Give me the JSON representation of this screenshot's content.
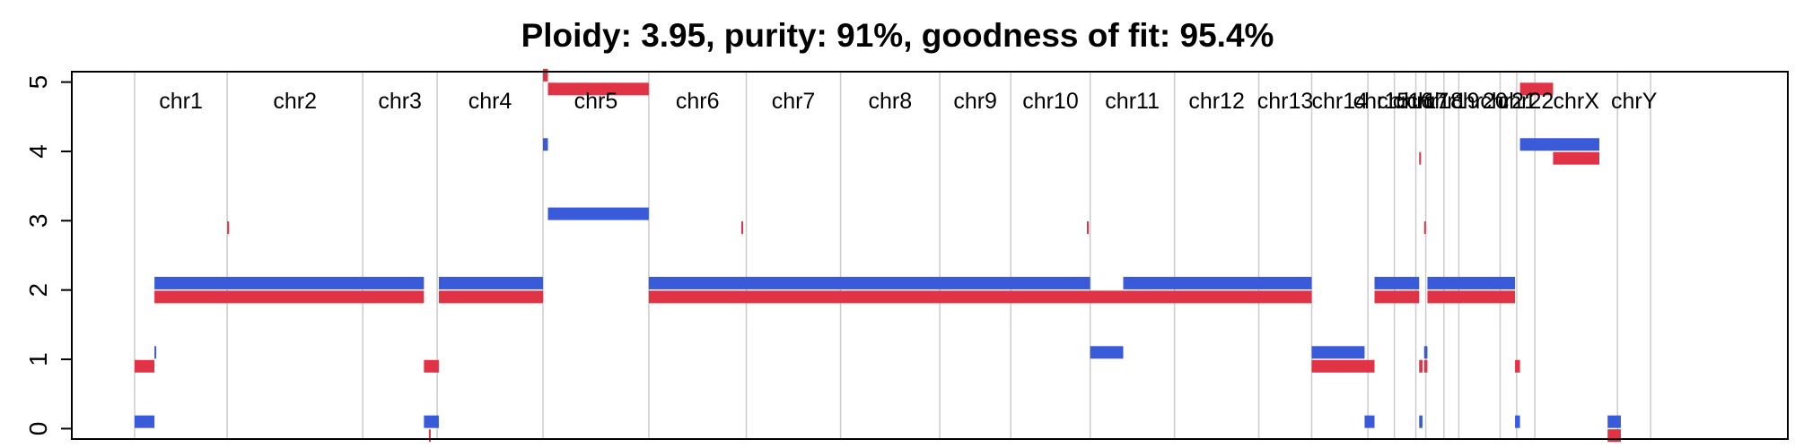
{
  "chart_data": {
    "type": "segment",
    "title": "Ploidy: 3.95, purity: 91%, goodness of fit: 95.4%",
    "xlabel": "",
    "ylabel": "",
    "ylim": [
      -0.15,
      5.15
    ],
    "yticks": [
      0,
      1,
      2,
      3,
      4,
      5
    ],
    "grid": true,
    "x_units": "genome position (chromosome lengths, 1000 units total)",
    "colors": {
      "major": "#3a5bd9",
      "minor": "#e03346",
      "grid": "#cccccc",
      "axis": "#000000"
    },
    "chromosomes": [
      {
        "name": "chr1",
        "start": 0,
        "end": 56
      },
      {
        "name": "chr2",
        "start": 56,
        "end": 138
      },
      {
        "name": "chr3",
        "start": 138,
        "end": 183
      },
      {
        "name": "chr4",
        "start": 183,
        "end": 247
      },
      {
        "name": "chr5",
        "start": 247,
        "end": 311
      },
      {
        "name": "chr6",
        "start": 311,
        "end": 370
      },
      {
        "name": "chr7",
        "start": 370,
        "end": 427
      },
      {
        "name": "chr8",
        "start": 427,
        "end": 487
      },
      {
        "name": "chr9",
        "start": 487,
        "end": 530
      },
      {
        "name": "chr10",
        "start": 530,
        "end": 578
      },
      {
        "name": "chr11",
        "start": 578,
        "end": 629
      },
      {
        "name": "chr12",
        "start": 629,
        "end": 680
      },
      {
        "name": "chr13",
        "start": 680,
        "end": 712
      },
      {
        "name": "chr14",
        "start": 712,
        "end": 746
      },
      {
        "name": "chr15",
        "start": 746,
        "end": 762
      },
      {
        "name": "chr16",
        "start": 762,
        "end": 775
      },
      {
        "name": "chr17",
        "start": 775,
        "end": 781
      },
      {
        "name": "chr18",
        "start": 781,
        "end": 792
      },
      {
        "name": "chr19",
        "start": 792,
        "end": 801
      },
      {
        "name": "chr20",
        "start": 801,
        "end": 826
      },
      {
        "name": "chr21",
        "start": 826,
        "end": 836
      },
      {
        "name": "chr22",
        "start": 836,
        "end": 847
      },
      {
        "name": "chrX",
        "start": 847,
        "end": 897
      },
      {
        "name": "chrY",
        "start": 897,
        "end": 917
      }
    ],
    "series": [
      {
        "name": "major",
        "segments": [
          {
            "x0": 0,
            "x1": 12,
            "y": 0.1
          },
          {
            "x0": 12,
            "x1": 13,
            "y": 1.1
          },
          {
            "x0": 12,
            "x1": 175,
            "y": 2.1
          },
          {
            "x0": 175,
            "x1": 184,
            "y": 0.1
          },
          {
            "x0": 184,
            "x1": 247,
            "y": 2.1
          },
          {
            "x0": 247,
            "x1": 250,
            "y": 4.1
          },
          {
            "x0": 250,
            "x1": 311,
            "y": 3.1
          },
          {
            "x0": 311,
            "x1": 578,
            "y": 2.1
          },
          {
            "x0": 578,
            "x1": 598,
            "y": 1.1
          },
          {
            "x0": 598,
            "x1": 712,
            "y": 2.1
          },
          {
            "x0": 712,
            "x1": 744,
            "y": 1.1
          },
          {
            "x0": 744,
            "x1": 750,
            "y": 0.1
          },
          {
            "x0": 750,
            "x1": 777,
            "y": 2.1
          },
          {
            "x0": 777,
            "x1": 779,
            "y": 0.1
          },
          {
            "x0": 780,
            "x1": 782,
            "y": 1.1
          },
          {
            "x0": 782,
            "x1": 835,
            "y": 2.1
          },
          {
            "x0": 835,
            "x1": 838,
            "y": 0.1
          },
          {
            "x0": 838,
            "x1": 886,
            "y": 4.1
          },
          {
            "x0": 891,
            "x1": 899,
            "y": 0.1
          }
        ]
      },
      {
        "name": "minor",
        "segments": [
          {
            "x0": 0,
            "x1": 12,
            "y": 0.9
          },
          {
            "x0": 12,
            "x1": 175,
            "y": 1.9
          },
          {
            "x0": 56,
            "x1": 57,
            "y": 2.9
          },
          {
            "x0": 175,
            "x1": 184,
            "y": 0.9
          },
          {
            "x0": 178,
            "x1": 179,
            "y": -0.1
          },
          {
            "x0": 184,
            "x1": 247,
            "y": 1.9
          },
          {
            "x0": 247,
            "x1": 250,
            "y": 5.1
          },
          {
            "x0": 250,
            "x1": 311,
            "y": 4.9
          },
          {
            "x0": 311,
            "x1": 712,
            "y": 1.9
          },
          {
            "x0": 367,
            "x1": 368,
            "y": 2.9
          },
          {
            "x0": 576,
            "x1": 577,
            "y": 2.9
          },
          {
            "x0": 712,
            "x1": 750,
            "y": 0.9
          },
          {
            "x0": 750,
            "x1": 777,
            "y": 1.9
          },
          {
            "x0": 777,
            "x1": 779,
            "y": 0.9
          },
          {
            "x0": 777,
            "x1": 778,
            "y": 3.9
          },
          {
            "x0": 780,
            "x1": 782,
            "y": 0.9
          },
          {
            "x0": 780,
            "x1": 781,
            "y": 2.9
          },
          {
            "x0": 782,
            "x1": 835,
            "y": 1.9
          },
          {
            "x0": 835,
            "x1": 838,
            "y": 0.9
          },
          {
            "x0": 838,
            "x1": 858,
            "y": 4.9
          },
          {
            "x0": 858,
            "x1": 886,
            "y": 3.9
          },
          {
            "x0": 891,
            "x1": 899,
            "y": -0.1
          }
        ]
      }
    ]
  }
}
